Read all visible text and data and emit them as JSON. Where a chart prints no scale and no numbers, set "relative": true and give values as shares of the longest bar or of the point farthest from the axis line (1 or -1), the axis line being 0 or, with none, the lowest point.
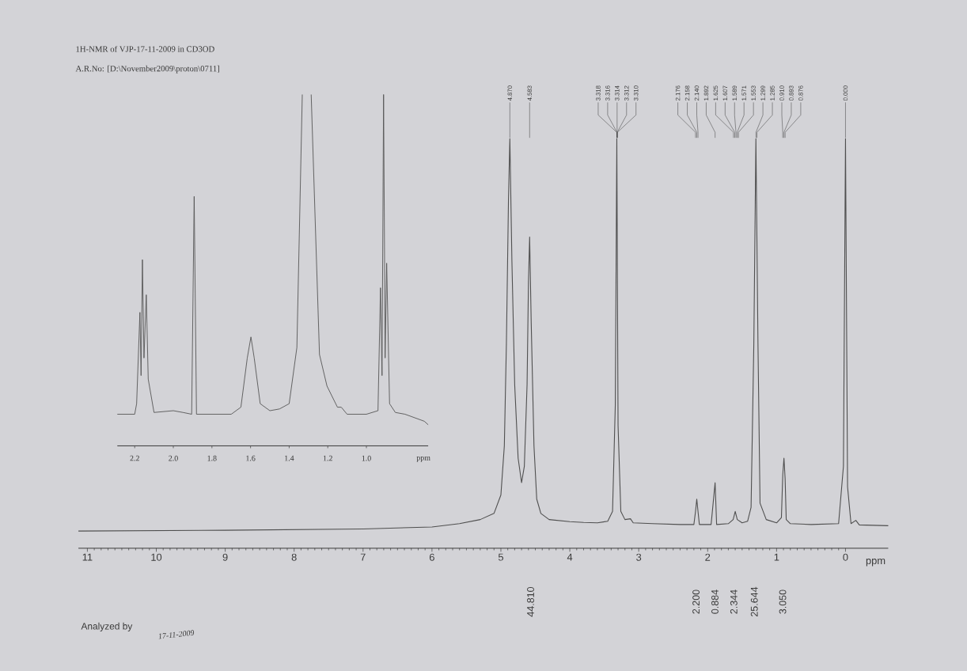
{
  "chart_data": [
    {
      "type": "line",
      "title": "1H-NMR of VJP-17-11-2009 in CD3OD",
      "subtitle": "A.R.No: [D:\\November2009\\proton\\0711]",
      "xlabel": "ppm",
      "relative": true,
      "color": "#4f4f4f",
      "xlim": [
        11.13,
        -0.62
      ],
      "xticks": [
        11,
        10,
        9,
        8,
        7,
        6,
        5,
        4,
        3,
        2,
        1,
        0
      ],
      "x": [
        11.13,
        9.0,
        7.0,
        6.0,
        5.6,
        5.3,
        5.1,
        5.0,
        4.95,
        4.92,
        4.89,
        4.87,
        4.84,
        4.8,
        4.75,
        4.7,
        4.66,
        4.62,
        4.6,
        4.583,
        4.56,
        4.52,
        4.48,
        4.42,
        4.3,
        4.0,
        3.8,
        3.6,
        3.45,
        3.38,
        3.34,
        3.318,
        3.3,
        3.26,
        3.2,
        3.12,
        3.08,
        2.8,
        2.4,
        2.2,
        2.176,
        2.158,
        2.14,
        2.12,
        1.95,
        1.892,
        1.87,
        1.7,
        1.63,
        1.6,
        1.57,
        1.5,
        1.42,
        1.37,
        1.33,
        1.3,
        1.27,
        1.24,
        1.15,
        1.0,
        0.93,
        0.91,
        0.893,
        0.876,
        0.86,
        0.8,
        0.5,
        0.1,
        0.03,
        0.0,
        -0.03,
        -0.08,
        -0.15,
        -0.2,
        -0.62
      ],
      "values": [
        0.042,
        0.044,
        0.047,
        0.052,
        0.06,
        0.07,
        0.085,
        0.13,
        0.25,
        0.5,
        0.85,
        1.0,
        0.7,
        0.4,
        0.22,
        0.16,
        0.2,
        0.4,
        0.65,
        0.76,
        0.55,
        0.25,
        0.12,
        0.085,
        0.07,
        0.065,
        0.063,
        0.062,
        0.066,
        0.09,
        0.35,
        1.0,
        0.3,
        0.09,
        0.07,
        0.072,
        0.062,
        0.06,
        0.058,
        0.058,
        0.09,
        0.12,
        0.09,
        0.058,
        0.058,
        0.16,
        0.058,
        0.06,
        0.07,
        0.09,
        0.07,
        0.062,
        0.066,
        0.1,
        0.5,
        1.0,
        0.5,
        0.11,
        0.07,
        0.062,
        0.075,
        0.18,
        0.22,
        0.17,
        0.07,
        0.06,
        0.058,
        0.06,
        0.2,
        1.0,
        0.15,
        0.06,
        0.068,
        0.057,
        0.055
      ],
      "annotations": [
        {
          "text": "4.870",
          "x": 4.87
        },
        {
          "text": "4.583",
          "x": 4.583
        },
        {
          "text": "3.318",
          "x": 3.318
        },
        {
          "text": "3.316",
          "x": 3.316
        },
        {
          "text": "3.314",
          "x": 3.314
        },
        {
          "text": "3.312",
          "x": 3.312
        },
        {
          "text": "3.310",
          "x": 3.31
        },
        {
          "text": "2.176",
          "x": 2.176
        },
        {
          "text": "2.158",
          "x": 2.158
        },
        {
          "text": "2.140",
          "x": 2.14
        },
        {
          "text": "1.892",
          "x": 1.892
        },
        {
          "text": "1.625",
          "x": 1.625
        },
        {
          "text": "1.607",
          "x": 1.607
        },
        {
          "text": "1.589",
          "x": 1.589
        },
        {
          "text": "1.571",
          "x": 1.571
        },
        {
          "text": "1.553",
          "x": 1.553
        },
        {
          "text": "1.299",
          "x": 1.299
        },
        {
          "text": "1.285",
          "x": 1.285
        },
        {
          "text": "0.910",
          "x": 0.91
        },
        {
          "text": "0.893",
          "x": 0.893
        },
        {
          "text": "0.876",
          "x": 0.876
        },
        {
          "text": "0.000",
          "x": 0.0
        },
        "44.810",
        "2.200",
        "0.884",
        "2.344",
        "25.644",
        "3.050",
        "Analyzed by",
        "17-11-2009"
      ]
    },
    {
      "type": "line",
      "xlabel": "ppm",
      "relative": true,
      "color": "#555555",
      "xlim": [
        2.29,
        0.68
      ],
      "xticks": [
        2.2,
        {
          "value": 2.0,
          "label": "2.0"
        },
        1.8,
        1.6,
        1.4,
        1.2,
        {
          "value": 1.0,
          "label": "1.0"
        }
      ],
      "x": [
        2.29,
        2.2,
        2.19,
        2.173,
        2.167,
        2.16,
        2.152,
        2.14,
        2.13,
        2.1,
        2.0,
        1.95,
        1.905,
        1.892,
        1.88,
        1.7,
        1.65,
        1.617,
        1.598,
        1.581,
        1.55,
        1.5,
        1.45,
        1.4,
        1.36,
        1.332,
        1.31,
        1.286,
        1.243,
        1.204,
        1.15,
        1.13,
        1.1,
        1.0,
        0.94,
        0.927,
        0.919,
        0.911,
        0.903,
        0.895,
        0.88,
        0.85,
        0.8,
        0.75,
        0.7,
        0.68
      ],
      "values": [
        0.09,
        0.09,
        0.12,
        0.38,
        0.2,
        0.53,
        0.25,
        0.43,
        0.19,
        0.095,
        0.1,
        0.095,
        0.09,
        0.71,
        0.09,
        0.09,
        0.11,
        0.25,
        0.31,
        0.25,
        0.12,
        0.1,
        0.105,
        0.12,
        0.28,
        1.0,
        null,
        1.0,
        0.26,
        0.17,
        0.11,
        0.11,
        0.09,
        0.09,
        0.1,
        0.45,
        0.2,
        1.0,
        0.25,
        0.52,
        0.12,
        0.095,
        0.09,
        0.08,
        0.07,
        0.06
      ]
    }
  ]
}
